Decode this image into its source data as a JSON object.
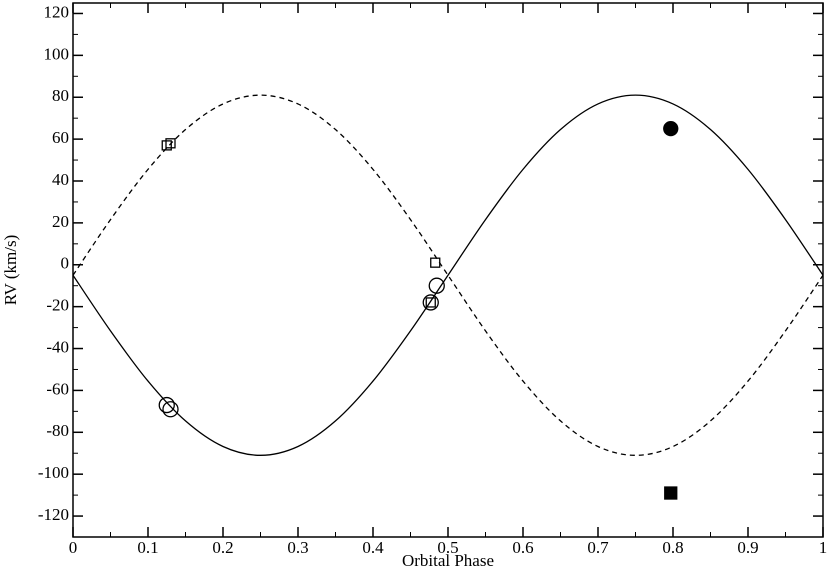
{
  "chart_data": {
    "type": "line",
    "x_label": "Orbital Phase",
    "y_label": "RV (km/s)",
    "xlim": [
      0,
      1
    ],
    "ylim": [
      -130,
      125
    ],
    "xticks": [
      0,
      0.1,
      0.2,
      0.3,
      0.4,
      0.5,
      0.6,
      0.7,
      0.8,
      0.9,
      1
    ],
    "yticks": [
      -120,
      -100,
      -80,
      -60,
      -40,
      -20,
      0,
      20,
      40,
      60,
      80,
      100,
      120
    ],
    "series": [
      {
        "style": "solid",
        "color": "#000000",
        "x": [
          0,
          0.05,
          0.1,
          0.15,
          0.2,
          0.25,
          0.3,
          0.35,
          0.4,
          0.45,
          0.5,
          0.55,
          0.6,
          0.65,
          0.7,
          0.75,
          0.8,
          0.85,
          0.9,
          0.95,
          1
        ],
        "values": [
          -5,
          -31.57,
          -55.55,
          -74.57,
          -86.79,
          -91,
          -86.79,
          -74.57,
          -55.55,
          -31.57,
          -5,
          21.57,
          45.55,
          64.57,
          76.79,
          81,
          76.79,
          64.57,
          45.55,
          21.57,
          -5
        ]
      },
      {
        "style": "dashed",
        "color": "#000000",
        "x": [
          0,
          0.05,
          0.1,
          0.15,
          0.2,
          0.25,
          0.3,
          0.35,
          0.4,
          0.45,
          0.5,
          0.55,
          0.6,
          0.65,
          0.7,
          0.75,
          0.8,
          0.85,
          0.9,
          0.95,
          1
        ],
        "values": [
          -5,
          21.57,
          45.55,
          64.57,
          76.79,
          81,
          76.79,
          64.57,
          45.55,
          21.57,
          -5,
          -31.57,
          -55.55,
          -74.57,
          -86.79,
          -91,
          -86.79,
          -74.57,
          -55.55,
          -31.57,
          -5
        ]
      },
      {
        "marker": "circle",
        "filled": false,
        "color": "#000000",
        "x": [
          0.125,
          0.13,
          0.477,
          0.485
        ],
        "values": [
          -67,
          -69,
          -18,
          -10
        ]
      },
      {
        "marker": "square",
        "filled": false,
        "color": "#000000",
        "x": [
          0.125,
          0.13,
          0.477,
          0.483
        ],
        "values": [
          57,
          58,
          -18,
          1
        ]
      },
      {
        "marker": "circle",
        "filled": true,
        "color": "#000000",
        "x": [
          0.797
        ],
        "values": [
          65
        ]
      },
      {
        "marker": "square",
        "filled": true,
        "color": "#000000",
        "x": [
          0.797
        ],
        "values": [
          -109
        ]
      }
    ]
  }
}
